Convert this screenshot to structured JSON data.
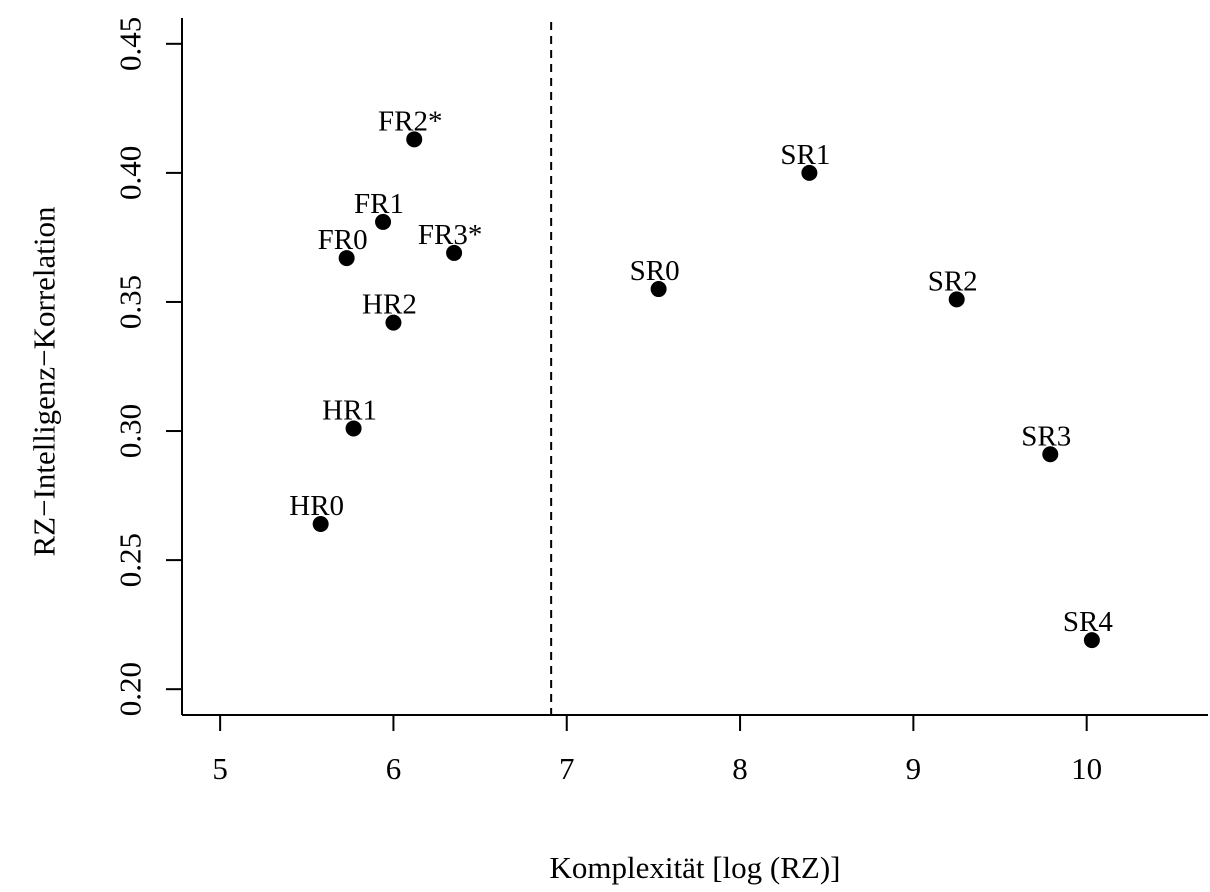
{
  "chart_data": {
    "type": "scatter",
    "title": "",
    "xlabel": "Komplexität [log (RZ)]",
    "ylabel": "RZ−Intelligenz−Korrelation",
    "xlim": [
      4.78,
      10.7
    ],
    "ylim": [
      0.19,
      0.46
    ],
    "x_ticks": [
      5,
      6,
      7,
      8,
      9,
      10
    ],
    "x_tick_labels": [
      "5",
      "6",
      "7",
      "8",
      "9",
      "10"
    ],
    "y_ticks": [
      0.2,
      0.25,
      0.3,
      0.35,
      0.4,
      0.45
    ],
    "y_tick_labels": [
      "0.20",
      "0.25",
      "0.30",
      "0.35",
      "0.40",
      "0.45"
    ],
    "grid": false,
    "legend": "none",
    "reference_line": {
      "orientation": "vertical",
      "x": 6.91,
      "style": "dashed"
    },
    "points": [
      {
        "label": "HR0",
        "x": 5.58,
        "y": 0.264
      },
      {
        "label": "HR1",
        "x": 5.77,
        "y": 0.301
      },
      {
        "label": "HR2",
        "x": 6.0,
        "y": 0.342
      },
      {
        "label": "FR0",
        "x": 5.73,
        "y": 0.367
      },
      {
        "label": "FR1",
        "x": 5.94,
        "y": 0.381
      },
      {
        "label": "FR2*",
        "x": 6.12,
        "y": 0.413
      },
      {
        "label": "FR3*",
        "x": 6.35,
        "y": 0.369
      },
      {
        "label": "SR0",
        "x": 7.53,
        "y": 0.355
      },
      {
        "label": "SR1",
        "x": 8.4,
        "y": 0.4
      },
      {
        "label": "SR2",
        "x": 9.25,
        "y": 0.351
      },
      {
        "label": "SR3",
        "x": 9.79,
        "y": 0.291
      },
      {
        "label": "SR4",
        "x": 10.03,
        "y": 0.219
      }
    ],
    "colors": {
      "marker": "#000000",
      "axis": "#000000",
      "background": "#ffffff"
    }
  }
}
